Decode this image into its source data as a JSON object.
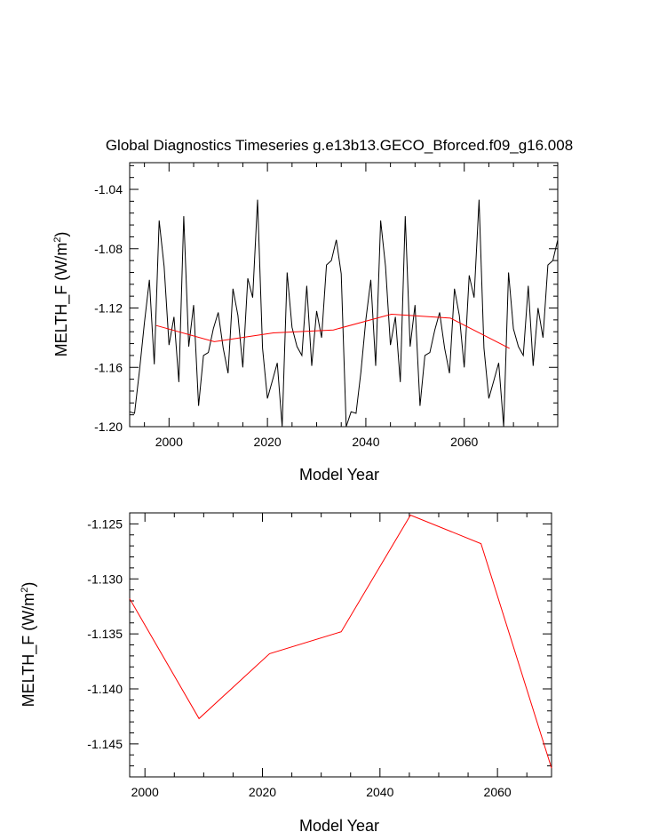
{
  "title": "Global Diagnostics Timeseries g.e13b13.GECO_Bforced.f09_g16.008",
  "colors": {
    "annual": "#000000",
    "mean": "#ff0000",
    "axis": "#000000"
  },
  "chart_data": [
    {
      "type": "line",
      "title": "Global Diagnostics Timeseries g.e13b13.GECO_Bforced.f09_g16.008",
      "xlabel": "Model Year",
      "ylabel_main": "MELTH_F (W/m",
      "ylabel_sup": "2",
      "ylabel_end": ")",
      "xlim": [
        1992,
        2079
      ],
      "ylim": [
        -1.2,
        -1.022
      ],
      "xticks": [
        2000,
        2020,
        2040,
        2060
      ],
      "xtick_labels": [
        "2000",
        "2020",
        "2040",
        "2060"
      ],
      "yticks": [
        -1.2,
        -1.16,
        -1.12,
        -1.08,
        -1.04
      ],
      "ytick_labels": [
        "-1.20",
        "-1.16",
        "-1.12",
        "-1.08",
        "-1.04"
      ],
      "series": [
        {
          "name": "annual",
          "color": "#000000",
          "x": [
            1992,
            1993,
            1994,
            1995,
            1996,
            1997,
            1998,
            1999,
            2000,
            2001,
            2002,
            2003,
            2004,
            2005,
            2006,
            2007,
            2008,
            2009,
            2010,
            2011,
            2012,
            2013,
            2014,
            2015,
            2016,
            2017,
            2018,
            2019,
            2020,
            2021,
            2022,
            2023,
            2024,
            2025,
            2026,
            2027,
            2028,
            2029,
            2030,
            2031,
            2032,
            2033,
            2034,
            2035,
            2036,
            2037,
            2038,
            2039,
            2040,
            2041,
            2042,
            2043,
            2044,
            2045,
            2046,
            2047,
            2048,
            2049,
            2050,
            2051,
            2052,
            2053,
            2054,
            2055,
            2056,
            2057,
            2058,
            2059,
            2060,
            2061,
            2062,
            2063,
            2064,
            2065,
            2066,
            2067,
            2068,
            2069,
            2070,
            2071,
            2072,
            2073,
            2074,
            2075,
            2076,
            2077,
            2078,
            2079
          ],
          "values": [
            -1.19,
            -1.191,
            -1.162,
            -1.13,
            -1.101,
            -1.158,
            -1.061,
            -1.092,
            -1.145,
            -1.126,
            -1.17,
            -1.058,
            -1.146,
            -1.118,
            -1.186,
            -1.152,
            -1.15,
            -1.134,
            -1.123,
            -1.147,
            -1.164,
            -1.107,
            -1.125,
            -1.16,
            -1.1,
            -1.113,
            -1.047,
            -1.147,
            -1.181,
            -1.169,
            -1.157,
            -1.2,
            -1.096,
            -1.133,
            -1.146,
            -1.152,
            -1.105,
            -1.159,
            -1.122,
            -1.14,
            -1.091,
            -1.088,
            -1.074,
            -1.097,
            -1.2,
            -1.19,
            -1.191,
            -1.163,
            -1.128,
            -1.101,
            -1.159,
            -1.061,
            -1.092,
            -1.145,
            -1.126,
            -1.17,
            -1.058,
            -1.146,
            -1.118,
            -1.186,
            -1.152,
            -1.15,
            -1.135,
            -1.123,
            -1.147,
            -1.164,
            -1.107,
            -1.125,
            -1.16,
            -1.098,
            -1.113,
            -1.047,
            -1.147,
            -1.181,
            -1.169,
            -1.157,
            -1.2,
            -1.096,
            -1.134,
            -1.146,
            -1.152,
            -1.105,
            -1.159,
            -1.12,
            -1.14,
            -1.091,
            -1.088,
            -1.074
          ]
        },
        {
          "name": "5-year mean",
          "color": "#ff0000",
          "x": [
            1997.4,
            2009.2,
            2021.2,
            2033.4,
            2045.2,
            2057.2,
            2069.2
          ],
          "values": [
            -1.1318,
            -1.1427,
            -1.1368,
            -1.1348,
            -1.1242,
            -1.1268,
            -1.1472
          ]
        }
      ]
    },
    {
      "type": "line",
      "title": "",
      "xlabel": "Model Year",
      "ylabel_main": "MELTH_F (W/m",
      "ylabel_sup": "2",
      "ylabel_end": ")",
      "xlim": [
        1997.4,
        2069.2
      ],
      "ylim": [
        -1.148,
        -1.124
      ],
      "xticks": [
        2000,
        2020,
        2040,
        2060
      ],
      "xtick_labels": [
        "2000",
        "2020",
        "2040",
        "2060"
      ],
      "yticks": [
        -1.145,
        -1.14,
        -1.135,
        -1.13,
        -1.125
      ],
      "ytick_labels": [
        "-1.145",
        "-1.140",
        "-1.135",
        "-1.130",
        "-1.125"
      ],
      "series": [
        {
          "name": "5-year mean",
          "color": "#ff0000",
          "x": [
            1997.4,
            2009.2,
            2021.2,
            2033.4,
            2045.2,
            2057.2,
            2069.2
          ],
          "values": [
            -1.1318,
            -1.1427,
            -1.1368,
            -1.1348,
            -1.1242,
            -1.1268,
            -1.1472
          ]
        }
      ]
    }
  ]
}
